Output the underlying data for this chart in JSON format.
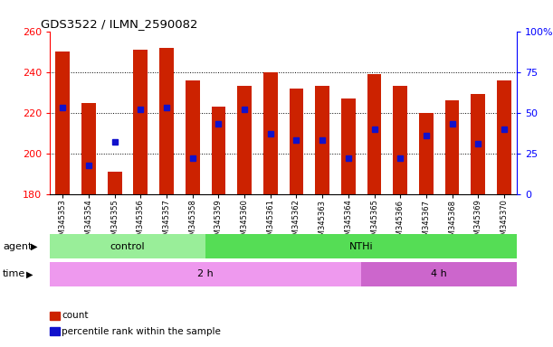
{
  "title": "GDS3522 / ILMN_2590082",
  "samples": [
    "GSM345353",
    "GSM345354",
    "GSM345355",
    "GSM345356",
    "GSM345357",
    "GSM345358",
    "GSM345359",
    "GSM345360",
    "GSM345361",
    "GSM345362",
    "GSM345363",
    "GSM345364",
    "GSM345365",
    "GSM345366",
    "GSM345367",
    "GSM345368",
    "GSM345369",
    "GSM345370"
  ],
  "counts": [
    250,
    225,
    191,
    251,
    252,
    236,
    223,
    233,
    240,
    232,
    233,
    227,
    239,
    233,
    220,
    226,
    229,
    236
  ],
  "percentiles": [
    53,
    18,
    32,
    52,
    53,
    22,
    43,
    52,
    37,
    33,
    33,
    22,
    40,
    22,
    36,
    43,
    31,
    40
  ],
  "y_min": 180,
  "y_max": 260,
  "y_ticks": [
    180,
    200,
    220,
    240,
    260
  ],
  "y_right_ticks": [
    0,
    25,
    50,
    75,
    100
  ],
  "bar_color": "#cc2200",
  "blue_color": "#1111cc",
  "plot_bg": "#ffffff",
  "agent_groups": [
    {
      "label": "control",
      "start": 0,
      "end": 6,
      "color": "#99ee99"
    },
    {
      "label": "NTHi",
      "start": 6,
      "end": 18,
      "color": "#55dd55"
    }
  ],
  "time_groups": [
    {
      "label": "2 h",
      "start": 0,
      "end": 12,
      "color": "#ee99ee"
    },
    {
      "label": "4 h",
      "start": 12,
      "end": 18,
      "color": "#cc66cc"
    }
  ],
  "legend_items": [
    {
      "label": "count",
      "color": "#cc2200"
    },
    {
      "label": "percentile rank within the sample",
      "color": "#1111cc"
    }
  ]
}
